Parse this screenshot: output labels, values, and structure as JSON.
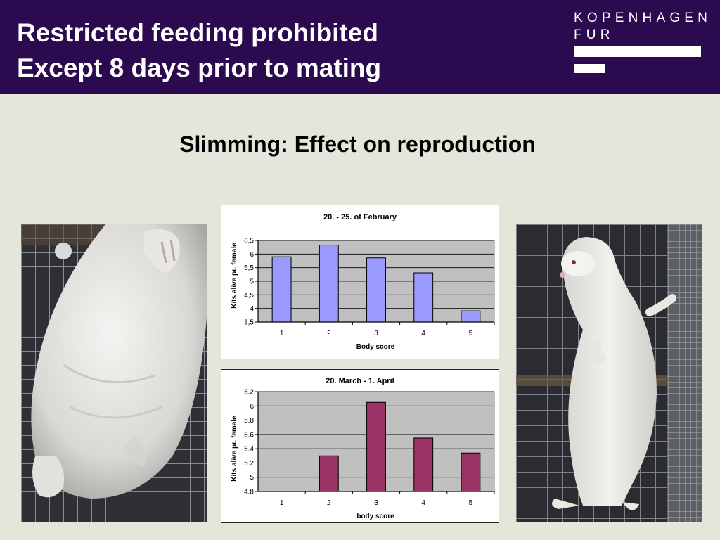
{
  "header": {
    "title_line1": "Restricted feeding prohibited",
    "title_line2": "Except 8 days prior to mating",
    "brand_line1": "KOPENHAGEN",
    "brand_line2": "FUR",
    "background_color": "#2c0a4f"
  },
  "subtitle": "Slimming: Effect on reproduction",
  "chart_data": [
    {
      "type": "bar",
      "title": "20. - 25. of February",
      "xlabel": "Body score",
      "ylabel": "Kits alive pr. female",
      "categories": [
        "1",
        "2",
        "3",
        "4",
        "5"
      ],
      "values": [
        5.9,
        6.33,
        5.86,
        5.31,
        3.91
      ],
      "ylim": [
        3.5,
        6.5
      ],
      "yticks": [
        3.5,
        4,
        4.5,
        5,
        5.5,
        6,
        6.5
      ],
      "ytick_labels": [
        "3,5",
        "4",
        "4,5",
        "5",
        "5,5",
        "6",
        "6,5"
      ],
      "bar_color": "#9999ff",
      "plot_background": "#c0c0c0",
      "grid": true,
      "legend": "none"
    },
    {
      "type": "bar",
      "title": "20. March - 1. April",
      "xlabel": "body score",
      "ylabel": "Kits alive pr. female",
      "categories": [
        "1",
        "2",
        "3",
        "4",
        "5"
      ],
      "values": [
        null,
        5.3,
        6.05,
        5.55,
        5.34
      ],
      "ylim": [
        4.8,
        6.2
      ],
      "yticks": [
        4.8,
        5,
        5.2,
        5.4,
        5.6,
        5.8,
        6,
        6.2
      ],
      "ytick_labels": [
        "4.8",
        "5",
        "5.2",
        "5.4",
        "5.6",
        "5.8",
        "6",
        "6.2"
      ],
      "bar_color": "#993366",
      "plot_background": "#c0c0c0",
      "grid": true,
      "legend": "none"
    }
  ]
}
